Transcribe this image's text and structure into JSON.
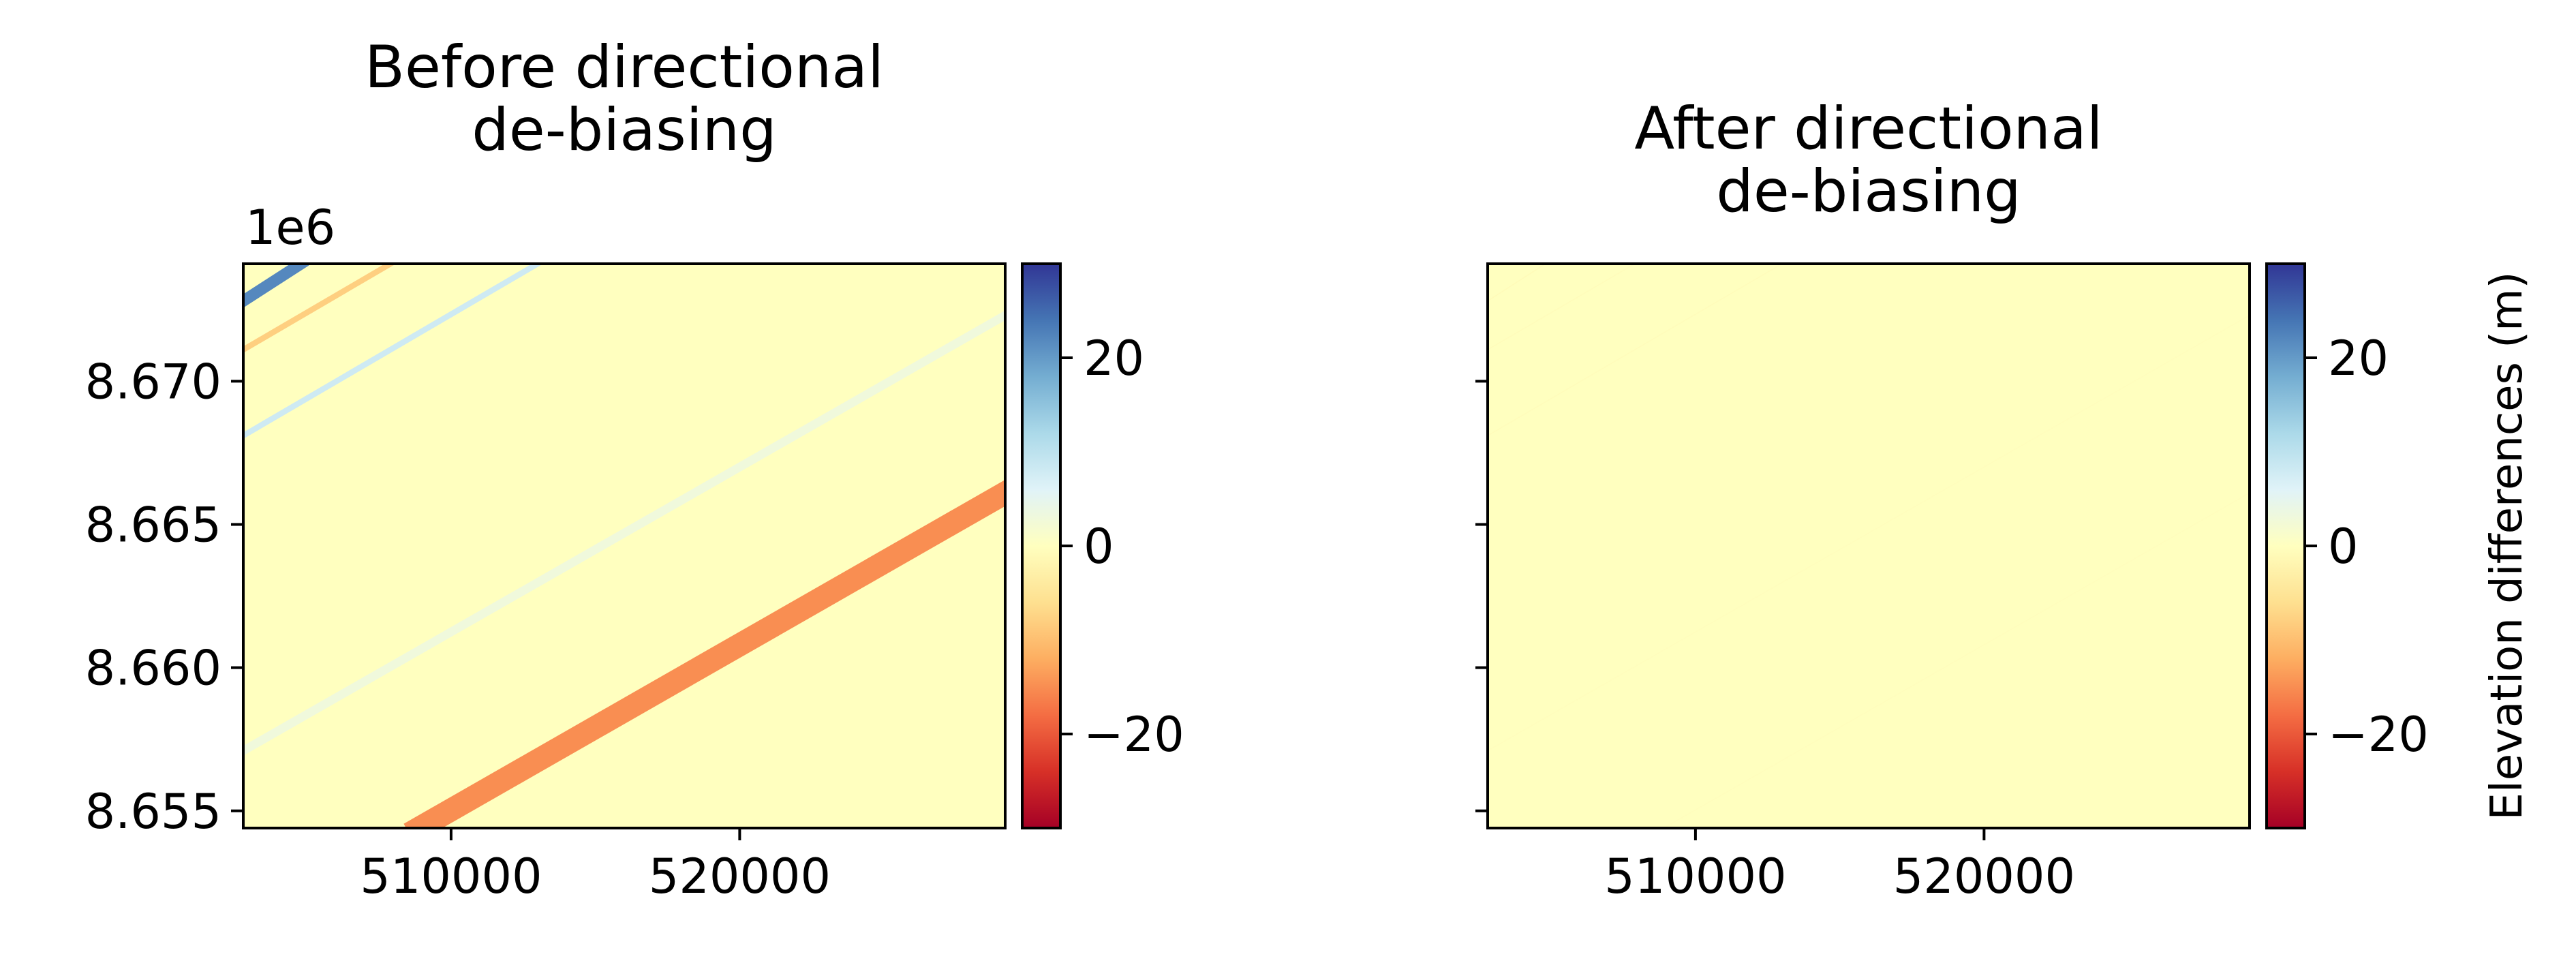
{
  "chart_data": [
    {
      "type": "heatmap",
      "title": "Before directional\nde-biasing",
      "x_ticks": [
        510000,
        520000
      ],
      "y_ticks": [
        8.655,
        8.66,
        8.665,
        8.67
      ],
      "y_offset_label": "1e6",
      "xlim": [
        502800,
        529200
      ],
      "ylim": [
        8.6544,
        8.6741
      ],
      "background_value": 0,
      "bands": [
        {
          "value": 22,
          "x0": 502800,
          "y0": 8.6728,
          "x1": 504800,
          "y1": 8.6741,
          "width": 0.0004
        },
        {
          "value": -8,
          "x0": 502800,
          "y0": 8.6711,
          "x1": 507900,
          "y1": 8.6741,
          "width": 0.0002
        },
        {
          "value": 8,
          "x0": 502800,
          "y0": 8.6681,
          "x1": 513000,
          "y1": 8.6741,
          "width": 0.0002
        },
        {
          "value": 3,
          "x0": 502800,
          "y0": 8.6571,
          "x1": 529200,
          "y1": 8.6723,
          "width": 0.0003
        },
        {
          "value": -15,
          "x0": 508900,
          "y0": 8.6544,
          "x1": 529200,
          "y1": 8.6661,
          "width": 0.0008
        }
      ],
      "colorbar": {
        "ticks": [
          20,
          0,
          -20
        ],
        "tick_labels": [
          "20",
          "0",
          "−20"
        ],
        "range": [
          -30,
          30
        ],
        "colormap": "RdYlBu"
      }
    },
    {
      "type": "heatmap",
      "title": "After directional\nde-biasing",
      "x_ticks": [
        510000,
        520000
      ],
      "xlim": [
        502800,
        529200
      ],
      "ylim": [
        8.6544,
        8.6741
      ],
      "background_value": 0,
      "bands": [
        {
          "value": -0.8,
          "x0": 502800,
          "y0": 8.6728,
          "x1": 504800,
          "y1": 8.6741,
          "width": 3e-05
        },
        {
          "value": -0.5,
          "x0": 502800,
          "y0": 8.6711,
          "x1": 507900,
          "y1": 8.6741,
          "width": 3e-05
        },
        {
          "value": -0.5,
          "x0": 502800,
          "y0": 8.6681,
          "x1": 513000,
          "y1": 8.6741,
          "width": 3e-05
        },
        {
          "value": -0.3,
          "x0": 502800,
          "y0": 8.6571,
          "x1": 529200,
          "y1": 8.6723,
          "width": 3e-05
        },
        {
          "value": -0.3,
          "x0": 508900,
          "y0": 8.6544,
          "x1": 529200,
          "y1": 8.6661,
          "width": 3e-05
        }
      ],
      "colorbar": {
        "ticks": [
          20,
          0,
          -20
        ],
        "tick_labels": [
          "20",
          "0",
          "−20"
        ],
        "range": [
          -30,
          30
        ],
        "colormap": "RdYlBu",
        "label": "Elevation differences (m)"
      }
    }
  ],
  "colors": {
    "colormap_stops": [
      "#a50026",
      "#d73027",
      "#f46d43",
      "#fdae61",
      "#fee090",
      "#ffffbf",
      "#e0f3f8",
      "#abd9e9",
      "#74add1",
      "#4575b4",
      "#313695"
    ],
    "frame": "#000000"
  }
}
